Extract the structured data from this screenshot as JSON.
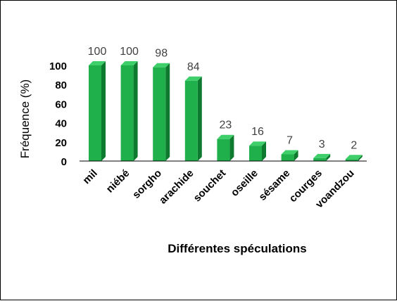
{
  "chart_data": {
    "type": "bar",
    "categories": [
      "mil",
      "niébé",
      "sorgho",
      "arachide",
      "souchet",
      "oseille",
      "sésame",
      "courges",
      "voandzou"
    ],
    "values": [
      100,
      100,
      98,
      84,
      23,
      16,
      7,
      3,
      2
    ],
    "value_labels": [
      "100",
      "100",
      "98",
      "84",
      "23",
      "16",
      "7",
      "3",
      "2"
    ],
    "yticks": [
      "0",
      "20",
      "40",
      "60",
      "80",
      "100"
    ],
    "ytick_values": [
      0,
      20,
      40,
      60,
      80,
      100
    ],
    "ylim": [
      0,
      100
    ],
    "xlabel": "Différentes spéculations",
    "ylabel": "Fréquence (%)",
    "grid": false,
    "legend": "none",
    "colors": {
      "bar_front": "#1fb04c",
      "bar_side": "#0e7a2f",
      "bar_top": "#3fcf6a",
      "axis": "#000000"
    }
  }
}
